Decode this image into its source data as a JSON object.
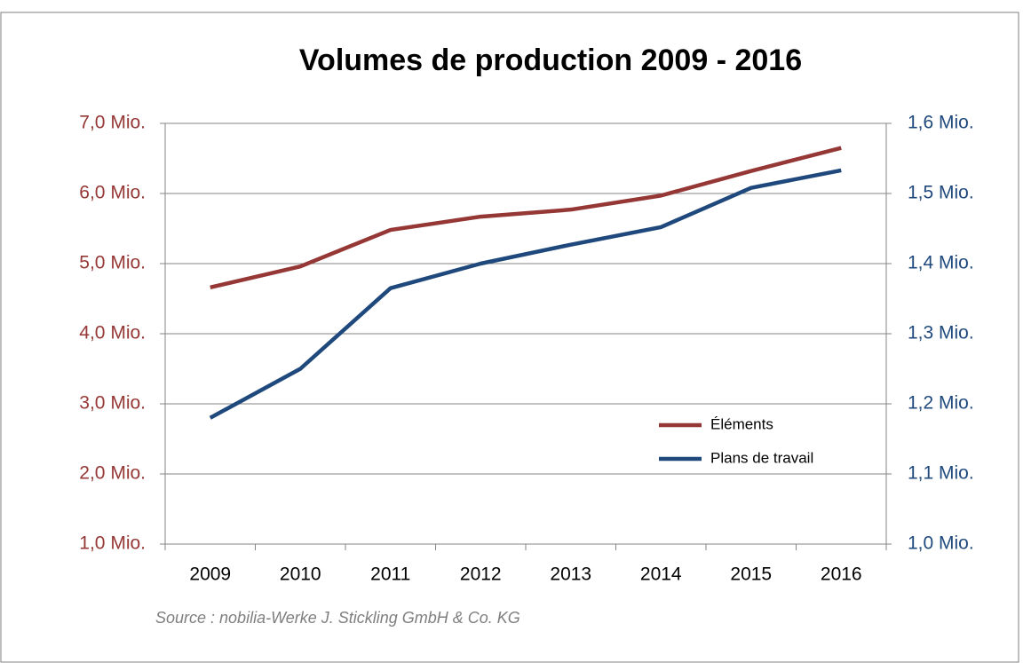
{
  "chart_data": {
    "type": "line",
    "title": "Volumes de production 2009 - 2016",
    "source": "Source : nobilia-Werke J. Stickling GmbH & Co. KG",
    "categories": [
      "2009",
      "2010",
      "2011",
      "2012",
      "2013",
      "2014",
      "2015",
      "2016"
    ],
    "series": [
      {
        "name": "Éléments",
        "color": "#953735",
        "axis": "y",
        "values": [
          4.66,
          4.96,
          5.48,
          5.67,
          5.77,
          5.97,
          6.32,
          6.65
        ]
      },
      {
        "name": "Plans de travail",
        "color": "#1f497d",
        "axis": "y2",
        "values": [
          1.18,
          1.25,
          1.365,
          1.4,
          1.427,
          1.452,
          1.508,
          1.533
        ]
      }
    ],
    "ylim": [
      1,
      7
    ],
    "yticks": [
      {
        "value": 1,
        "label": "1,0 Mio."
      },
      {
        "value": 2,
        "label": "2,0 Mio."
      },
      {
        "value": 3,
        "label": "3,0 Mio."
      },
      {
        "value": 4,
        "label": "4,0 Mio."
      },
      {
        "value": 5,
        "label": "5,0 Mio."
      },
      {
        "value": 6,
        "label": "6,0 Mio."
      },
      {
        "value": 7,
        "label": "7,0 Mio."
      }
    ],
    "y2lim": [
      1,
      1.6
    ],
    "y2ticks": [
      {
        "value": 1,
        "label": "1,0 Mio."
      },
      {
        "value": 1.1,
        "label": "1,1 Mio."
      },
      {
        "value": 1.2,
        "label": "1,2 Mio."
      },
      {
        "value": 1.3,
        "label": "1,3 Mio."
      },
      {
        "value": 1.4,
        "label": "1,4 Mio."
      },
      {
        "value": 1.5,
        "label": "1,5 Mio."
      },
      {
        "value": 1.6,
        "label": "1,6 Mio."
      }
    ],
    "grid": true,
    "legend": "lower right"
  }
}
